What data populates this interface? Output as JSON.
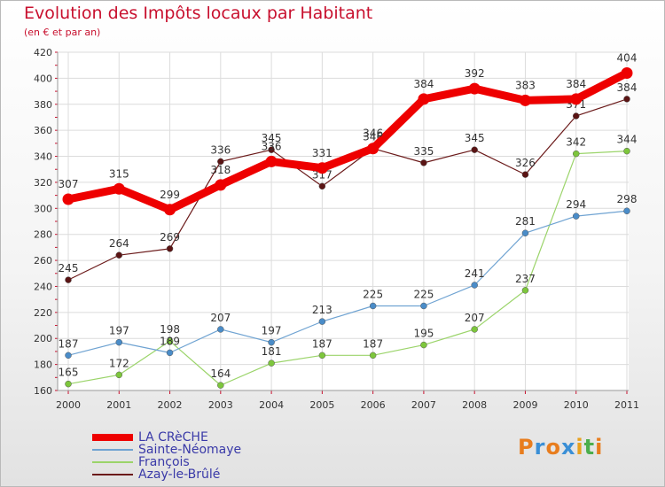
{
  "header": {
    "title": "Evolution des Impôts locaux par Habitant",
    "subtitle": "(en € et par an)"
  },
  "logo": {
    "text": "Proxiti",
    "letters": [
      "P",
      "r",
      "o",
      "x",
      "i",
      "t",
      "i"
    ],
    "colors": [
      "#e87d1e",
      "#3a8fd6",
      "#e87d1e",
      "#3a8fd6",
      "#e8a11e",
      "#4cae4c",
      "#e87d1e"
    ]
  },
  "chart_data": {
    "type": "line",
    "title": "Evolution des Impôts locaux par Habitant",
    "subtitle": "(en € et par an)",
    "x": [
      "2000",
      "2001",
      "2002",
      "2003",
      "2004",
      "2005",
      "2006",
      "2007",
      "2008",
      "2009",
      "2010",
      "2011"
    ],
    "ylim": [
      160,
      420
    ],
    "yticks": [
      160,
      180,
      200,
      220,
      240,
      260,
      280,
      300,
      320,
      340,
      360,
      380,
      400,
      420
    ],
    "grid": true,
    "legend_position": "bottom-left",
    "series": [
      {
        "name": "Azay-le-Brûlé",
        "color": "#6b1a1a",
        "marker": "#5a1414",
        "weight": 1.2,
        "values": [
          245,
          264,
          269,
          336,
          345,
          317,
          346,
          335,
          345,
          326,
          371,
          384
        ],
        "labels": [
          "245",
          "264",
          "269",
          "336",
          "345",
          "317",
          "346",
          "335",
          "345",
          "326",
          "371",
          "384"
        ]
      },
      {
        "name": "François",
        "color": "#9bd46a",
        "marker": "#7dc63c",
        "weight": 1.2,
        "values": [
          165,
          172,
          198,
          164,
          181,
          187,
          187,
          195,
          207,
          237,
          342,
          344
        ],
        "labels": [
          "165",
          "172",
          "198",
          "164",
          "181",
          "187",
          "187",
          "195",
          "207",
          "237",
          "342",
          "344"
        ]
      },
      {
        "name": "Sainte-Néomaye",
        "color": "#6fa3d2",
        "marker": "#4a8cc8",
        "weight": 1.2,
        "values": [
          187,
          197,
          189,
          207,
          197,
          213,
          225,
          225,
          241,
          281,
          294,
          298
        ],
        "labels": [
          "187",
          "197",
          "189",
          "207",
          "197",
          "213",
          "225",
          "225",
          "241",
          "281",
          "294",
          "298"
        ]
      },
      {
        "name": "LA CRèCHE",
        "color": "#ee0000",
        "marker": "#ee0000",
        "weight": 9,
        "values": [
          307,
          315,
          299,
          318,
          336,
          331,
          346,
          384,
          392,
          383,
          384,
          404
        ],
        "labels": [
          "307",
          "315",
          "299",
          "318",
          "336",
          "331",
          "346",
          "384",
          "392",
          "383",
          "384",
          "404"
        ]
      }
    ],
    "legend_order": [
      "LA CRèCHE",
      "Sainte-Néomaye",
      "François",
      "Azay-le-Brûlé"
    ]
  }
}
